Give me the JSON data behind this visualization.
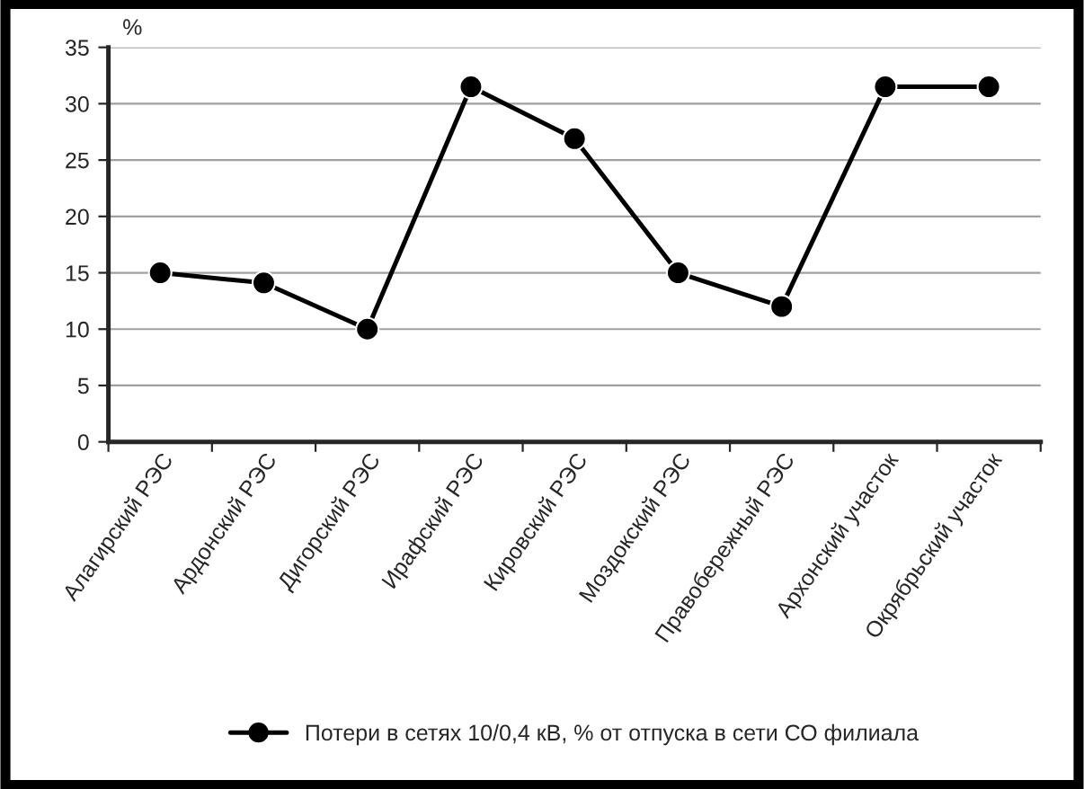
{
  "chart_data": {
    "type": "line",
    "ylabel": "%",
    "categories": [
      "Алагирский РЭС",
      "Ардонский РЭС",
      "Дигорский РЭС",
      "Ирафский РЭС",
      "Кировский РЭС",
      "Моздокский РЭС",
      "Правобережный РЭС",
      "Архонский участок",
      "Окрябрьский участок"
    ],
    "series": [
      {
        "name": "Потери в сетях 10/0,4 кВ, % от отпуска в сети СО филиала",
        "color": "#000000",
        "values": [
          15,
          14.1,
          10,
          31.5,
          26.9,
          15,
          12,
          31.5,
          31.5
        ]
      }
    ],
    "ylim": [
      0,
      35
    ],
    "yticks": [
      0,
      5,
      10,
      15,
      20,
      25,
      30,
      35
    ],
    "grid": "y",
    "legend": "bottom",
    "marker": "circle",
    "line_style": "solid"
  }
}
